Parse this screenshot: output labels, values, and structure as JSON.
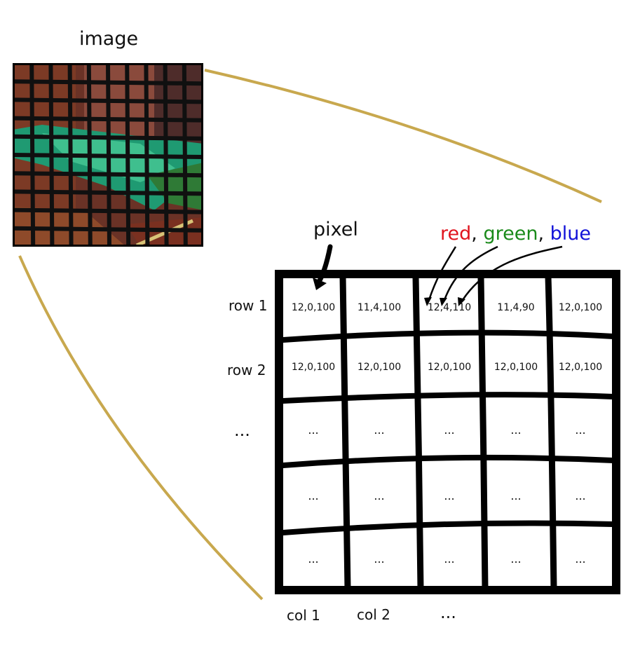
{
  "image_label": "image",
  "pixel_label": "pixel",
  "channels": {
    "red": "red",
    "green": "green",
    "blue": "blue",
    "separator": ",",
    "colors": {
      "red": "#e0141e",
      "green": "#1a8a1a",
      "blue": "#1212d8"
    }
  },
  "row_labels": [
    "row 1",
    "row 2",
    "..."
  ],
  "col_labels": [
    "col 1",
    "col 2",
    "..."
  ],
  "grid": {
    "rows": [
      [
        "12,0,100",
        "11,4,100",
        "12,4,110",
        "11,4,90",
        "12,0,100"
      ],
      [
        "12,0,100",
        "12,0,100",
        "12,0,100",
        "12,0,100",
        "12,0,100"
      ],
      [
        "...",
        "...",
        "...",
        "...",
        "..."
      ],
      [
        "...",
        "...",
        "...",
        "...",
        "..."
      ],
      [
        "...",
        "...",
        "...",
        "...",
        "..."
      ]
    ]
  },
  "colors": {
    "zoom_line": "#c8a84e",
    "grid_line": "#000000"
  }
}
